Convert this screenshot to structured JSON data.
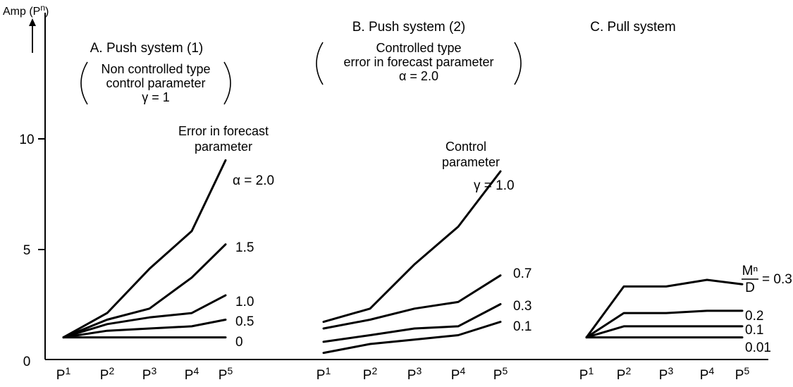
{
  "y_axis_label": "Amp (P",
  "y_axis_label_sup": "n",
  "y_axis_label_end": ")",
  "panels": [
    {
      "title": "A. Push system (1)",
      "sub": [
        "Non controlled type",
        "control parameter",
        "γ = 1"
      ],
      "legend_title": [
        "Error in forecast",
        "parameter"
      ]
    },
    {
      "title": "B. Push system (2)",
      "sub": [
        "Controlled type",
        "error in forecast parameter",
        "α = 2.0"
      ],
      "legend_title": [
        "Control",
        "parameter"
      ]
    },
    {
      "title": "C. Pull system",
      "sub": [],
      "legend_title": []
    }
  ],
  "chart_data": [
    {
      "type": "line",
      "title": "A. Push system (1)",
      "ylabel": "Amp (Pⁿ)",
      "ylim": [
        0,
        13
      ],
      "yticks": [
        0,
        5,
        10
      ],
      "categories": [
        "P1",
        "P2",
        "P3",
        "P4",
        "P5"
      ],
      "series": [
        {
          "name": "α = 2.0",
          "values": [
            1.0,
            2.1,
            4.1,
            5.8,
            9.0
          ]
        },
        {
          "name": "1.5",
          "values": [
            1.0,
            1.8,
            2.3,
            3.7,
            5.2
          ]
        },
        {
          "name": "1.0",
          "values": [
            1.0,
            1.6,
            1.9,
            2.1,
            2.9
          ]
        },
        {
          "name": "0.5",
          "values": [
            1.0,
            1.3,
            1.4,
            1.5,
            1.8
          ]
        },
        {
          "name": "0",
          "values": [
            1.0,
            1.0,
            1.0,
            1.0,
            1.0
          ]
        }
      ]
    },
    {
      "type": "line",
      "title": "B. Push system (2)",
      "ylim": [
        0,
        13
      ],
      "categories": [
        "P1",
        "P2",
        "P3",
        "P4",
        "P5"
      ],
      "series": [
        {
          "name": "γ = 1.0",
          "values": [
            1.7,
            2.3,
            4.3,
            6.0,
            8.5
          ]
        },
        {
          "name": "0.7",
          "values": [
            1.4,
            1.8,
            2.3,
            2.6,
            3.8
          ]
        },
        {
          "name": "0.3",
          "values": [
            0.8,
            1.1,
            1.4,
            1.5,
            2.5
          ]
        },
        {
          "name": "0.1",
          "values": [
            0.3,
            0.7,
            0.9,
            1.1,
            1.7
          ]
        }
      ]
    },
    {
      "type": "line",
      "title": "C. Pull system",
      "ylim": [
        0,
        13
      ],
      "categories": [
        "P1",
        "P2",
        "P3",
        "P4",
        "P5"
      ],
      "series": [
        {
          "name": "Mⁿ/D = 0.3",
          "values": [
            1.0,
            3.3,
            3.3,
            3.6,
            3.4
          ]
        },
        {
          "name": "0.2",
          "values": [
            1.0,
            2.1,
            2.1,
            2.2,
            2.2
          ]
        },
        {
          "name": "0.1",
          "values": [
            1.0,
            1.5,
            1.5,
            1.5,
            1.5
          ]
        },
        {
          "name": "0.01",
          "values": [
            1.0,
            1.0,
            1.0,
            1.0,
            1.0
          ]
        }
      ]
    }
  ]
}
